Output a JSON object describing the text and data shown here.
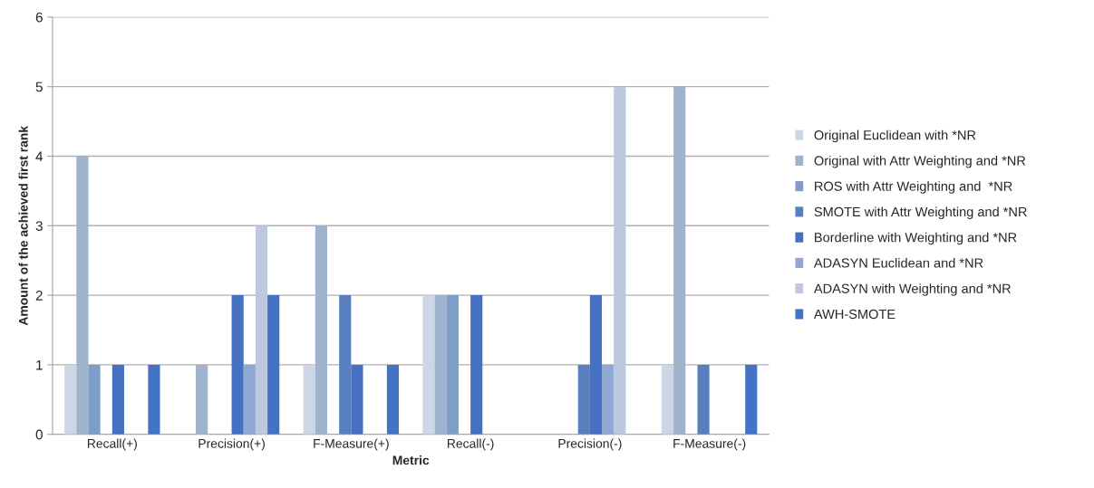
{
  "chart_data": {
    "type": "bar",
    "xlabel": "Metric",
    "ylabel": "Amount of the achieved first rank",
    "categories": [
      "Recall(+)",
      "Precision(+)",
      "F-Measure(+)",
      "Recall(-)",
      "Precision(-)",
      "F-Measure(-)"
    ],
    "series": [
      {
        "name": "Original Euclidean with *NR",
        "color": "#cdd6e6",
        "values": [
          1,
          0,
          1,
          2,
          0,
          1
        ]
      },
      {
        "name": "Original with Attr Weighting and *NR",
        "color": "#9fb3cd",
        "values": [
          4,
          1,
          3,
          2,
          0,
          5
        ]
      },
      {
        "name": "ROS with Attr Weighting and  *NR",
        "color": "#7f9dc9",
        "values": [
          1,
          0,
          0,
          2,
          0,
          0
        ]
      },
      {
        "name": "SMOTE with Attr Weighting and *NR",
        "color": "#5a7fbd",
        "values": [
          0,
          0,
          2,
          0,
          1,
          1
        ]
      },
      {
        "name": "Borderline with Weighting and *NR",
        "color": "#4670c2",
        "values": [
          1,
          2,
          1,
          2,
          2,
          0
        ]
      },
      {
        "name": "ADASYN Euclidean and *NR",
        "color": "#8fa8d4",
        "values": [
          0,
          1,
          0,
          0,
          1,
          0
        ]
      },
      {
        "name": "ADASYN with Weighting and *NR",
        "color": "#bcc8dd",
        "values": [
          0,
          3,
          0,
          0,
          5,
          0
        ]
      },
      {
        "name": "AWH-SMOTE",
        "color": "#4472c4",
        "values": [
          1,
          2,
          1,
          0,
          0,
          1
        ]
      }
    ],
    "ylim": [
      0,
      6
    ],
    "yticks": [
      0,
      1,
      2,
      3,
      4,
      5,
      6
    ],
    "grid": "y",
    "legend": "right"
  }
}
